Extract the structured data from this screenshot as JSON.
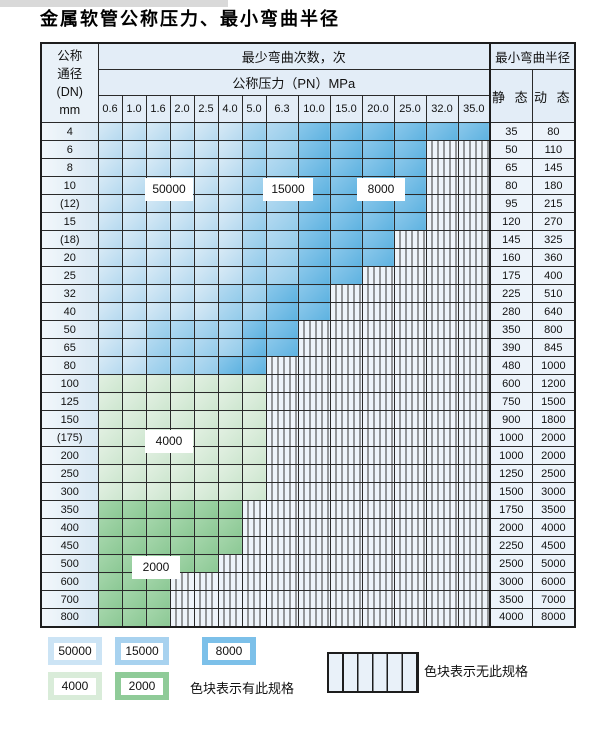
{
  "page": {
    "title": "金属软管公称压力、最小弯曲半径"
  },
  "table": {
    "header": {
      "dn_lines": "公称\n通径\n(DN)\nmm",
      "bend_cycles": "最少弯曲次数，次",
      "pressure": "公称压力（PN）MPa",
      "min_radius": "最小弯曲半径",
      "static_label": "静 态",
      "dynamic_label": "动 态"
    },
    "columns": [
      "0.6",
      "1.0",
      "1.6",
      "2.0",
      "2.5",
      "4.0",
      "5.0",
      "6.3",
      "10.0",
      "15.0",
      "20.0",
      "25.0",
      "32.0",
      "35.0"
    ],
    "bands": {
      "1": {
        "label": "50000",
        "light": "#d8eaf6",
        "dark": "#b5d9ef"
      },
      "2": {
        "label": "15000",
        "light": "#b5daf1",
        "dark": "#92cbea"
      },
      "3": {
        "label": "8000",
        "light": "#8cc8eb",
        "dark": "#5db2e0"
      },
      "4": {
        "label": "4000",
        "light": "#e2f0e2",
        "dark": "#cde6cf"
      },
      "5": {
        "label": "2000",
        "light": "#a5d6ab",
        "dark": "#8bc894"
      }
    },
    "hatch_meaning": "no specification",
    "rows": [
      {
        "dn": "4",
        "cells": "11111122333333",
        "static": "35",
        "dynamic": "80"
      },
      {
        "dn": "6",
        "cells": "11111122333300",
        "static": "50",
        "dynamic": "110"
      },
      {
        "dn": "8",
        "cells": "11111122333300",
        "static": "65",
        "dynamic": "145"
      },
      {
        "dn": "10",
        "cells": "11111122333300",
        "static": "80",
        "dynamic": "180"
      },
      {
        "dn": "(12)",
        "cells": "11111122333300",
        "static": "95",
        "dynamic": "215"
      },
      {
        "dn": "15",
        "cells": "11111122333300",
        "static": "120",
        "dynamic": "270"
      },
      {
        "dn": "(18)",
        "cells": "11111122333000",
        "static": "145",
        "dynamic": "325"
      },
      {
        "dn": "20",
        "cells": "11111122333000",
        "static": "160",
        "dynamic": "360"
      },
      {
        "dn": "25",
        "cells": "11111122330000",
        "static": "175",
        "dynamic": "400"
      },
      {
        "dn": "32",
        "cells": "11111223300000",
        "static": "225",
        "dynamic": "510"
      },
      {
        "dn": "40",
        "cells": "11111223300000",
        "static": "280",
        "dynamic": "640"
      },
      {
        "dn": "50",
        "cells": "11222233000000",
        "static": "350",
        "dynamic": "800"
      },
      {
        "dn": "65",
        "cells": "11222233000000",
        "static": "390",
        "dynamic": "845"
      },
      {
        "dn": "80",
        "cells": "11222330000000",
        "static": "480",
        "dynamic": "1000"
      },
      {
        "dn": "100",
        "cells": "44444440000000",
        "static": "600",
        "dynamic": "1200"
      },
      {
        "dn": "125",
        "cells": "44444440000000",
        "static": "750",
        "dynamic": "1500"
      },
      {
        "dn": "150",
        "cells": "44444440000000",
        "static": "900",
        "dynamic": "1800"
      },
      {
        "dn": "(175)",
        "cells": "44444440000000",
        "static": "1000",
        "dynamic": "2000"
      },
      {
        "dn": "200",
        "cells": "44444440000000",
        "static": "1000",
        "dynamic": "2000"
      },
      {
        "dn": "250",
        "cells": "44444440000000",
        "static": "1250",
        "dynamic": "2500"
      },
      {
        "dn": "300",
        "cells": "44444440000000",
        "static": "1500",
        "dynamic": "3000"
      },
      {
        "dn": "350",
        "cells": "55555500000000",
        "static": "1750",
        "dynamic": "3500"
      },
      {
        "dn": "400",
        "cells": "55555500000000",
        "static": "2000",
        "dynamic": "4000"
      },
      {
        "dn": "450",
        "cells": "55555500000000",
        "static": "2250",
        "dynamic": "4500"
      },
      {
        "dn": "500",
        "cells": "55555000000000",
        "static": "2500",
        "dynamic": "5000"
      },
      {
        "dn": "600",
        "cells": "55500000000000",
        "static": "3000",
        "dynamic": "6000"
      },
      {
        "dn": "700",
        "cells": "55500000000000",
        "static": "3500",
        "dynamic": "7000"
      },
      {
        "dn": "800",
        "cells": "55500000000000",
        "static": "4000",
        "dynamic": "8000"
      }
    ],
    "overlays": [
      {
        "label": "50000"
      },
      {
        "label": "15000"
      },
      {
        "label": "8000"
      },
      {
        "label": "4000"
      },
      {
        "label": "2000"
      }
    ]
  },
  "legend": {
    "swatches": [
      {
        "label": "50000",
        "color": "#cce4f5"
      },
      {
        "label": "15000",
        "color": "#a8d2ef"
      },
      {
        "label": "8000",
        "color": "#7cc0e9"
      },
      {
        "label": "4000",
        "color": "#d9ecd9"
      },
      {
        "label": "2000",
        "color": "#8fcb98"
      }
    ],
    "available_note": "色块表示有此规格",
    "unavailable_note": "色块表示无此规格"
  }
}
